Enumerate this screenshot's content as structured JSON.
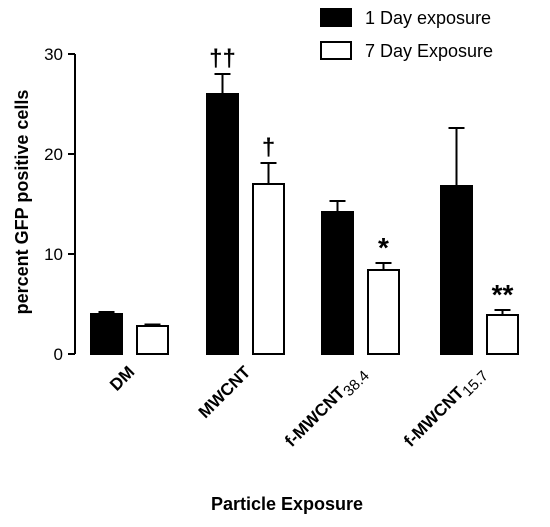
{
  "chart_data": {
    "type": "bar",
    "title": "",
    "xlabel": "Particle Exposure",
    "ylabel": "percent GFP positive cells",
    "ylim": [
      0,
      30
    ],
    "yticks": [
      0,
      10,
      20,
      30
    ],
    "grid": false,
    "legend_position": "top-right",
    "categories": [
      {
        "main": "DM",
        "sub": ""
      },
      {
        "main": "MWCNT",
        "sub": ""
      },
      {
        "main": "f-MWCNT",
        "sub": "38.4"
      },
      {
        "main": "f-MWCNT",
        "sub": "15.7"
      }
    ],
    "series": [
      {
        "name": "1 Day exposure",
        "fill": "#000000",
        "values": [
          4.0,
          26.0,
          14.2,
          16.8
        ],
        "errors": [
          0.2,
          2.0,
          1.1,
          5.8
        ],
        "annotations": [
          "",
          "††",
          "",
          ""
        ]
      },
      {
        "name": "7 Day Exposure",
        "fill": "#ffffff",
        "values": [
          2.8,
          17.0,
          8.4,
          3.9
        ],
        "errors": [
          0.15,
          2.1,
          0.7,
          0.5
        ],
        "annotations": [
          "",
          "†",
          "*",
          "**"
        ]
      }
    ]
  }
}
